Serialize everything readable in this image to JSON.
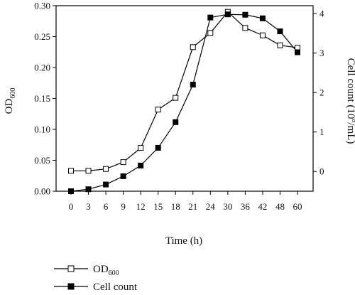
{
  "chart_data": {
    "type": "line",
    "x": [
      0,
      3,
      6,
      9,
      12,
      15,
      18,
      21,
      24,
      30,
      36,
      42,
      48,
      60
    ],
    "x_tick_labels": [
      "0",
      "3",
      "6",
      "9",
      "12",
      "15",
      "18",
      "21",
      "24",
      "30",
      "36",
      "42",
      "48",
      "60"
    ],
    "xlabel": "Time (h)",
    "y_left": {
      "label_main": "OD",
      "label_sub": "600",
      "lim": [
        0,
        0.3
      ],
      "ticks": [
        "0.00",
        "0.05",
        "0.10",
        "0.15",
        "0.20",
        "0.25",
        "0.30"
      ]
    },
    "y_right": {
      "label_pre": "Cell count (10",
      "label_sup": "8",
      "label_post": "/mL)",
      "lim": [
        -0.5,
        4.2
      ],
      "ticks": [
        "0",
        "1",
        "2",
        "3",
        "4"
      ]
    },
    "series": [
      {
        "name_main": "OD",
        "name_sub": "600",
        "axis": "left",
        "marker": "open-square",
        "values": [
          0.033,
          0.033,
          0.036,
          0.047,
          0.07,
          0.132,
          0.151,
          0.233,
          0.256,
          0.29,
          0.264,
          0.252,
          0.236,
          0.232
        ]
      },
      {
        "name": "Cell count",
        "axis": "right",
        "marker": "filled-square",
        "values": [
          -0.5,
          -0.45,
          -0.33,
          -0.12,
          0.15,
          0.6,
          1.25,
          2.2,
          3.9,
          3.98,
          3.97,
          3.88,
          3.55,
          3.02
        ]
      }
    ],
    "grid": false,
    "legend_position": "bottom-left"
  }
}
